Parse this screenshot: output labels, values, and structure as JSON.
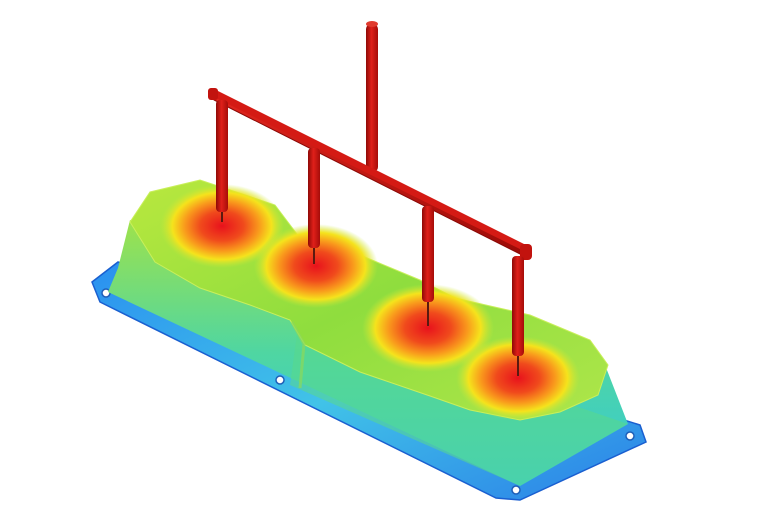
{
  "scene": {
    "subject": "mold-flow-fill-simulation",
    "cavity_count": 4,
    "colors": {
      "background": "#ffffff",
      "runner": "#c8120f",
      "hot": "#e8141b",
      "warm": "#f98a1a",
      "mid": "#f5e61c",
      "cool": "#7fd94a",
      "cold": "#2fd0b8",
      "edge": "#1e6be0"
    },
    "icon": "mold-part-with-runner-system"
  }
}
